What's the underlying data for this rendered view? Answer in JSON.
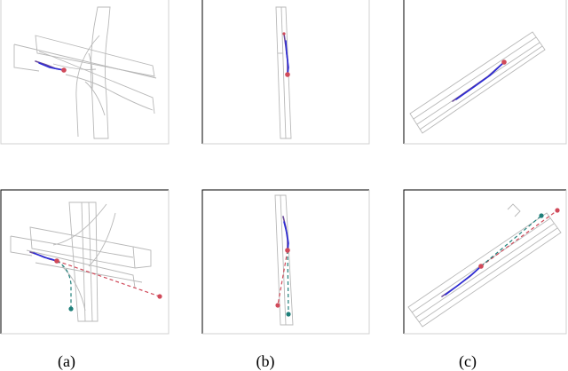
{
  "captions": [
    "(a)",
    "(b)",
    "(c)"
  ],
  "colors": {
    "history_purple": "#6a4a9a",
    "history_blue": "#2b2bd6",
    "prediction_red": "#d04a5a",
    "prediction_teal": "#1f7f7a",
    "lane_gray": "#b8b8b8"
  }
}
